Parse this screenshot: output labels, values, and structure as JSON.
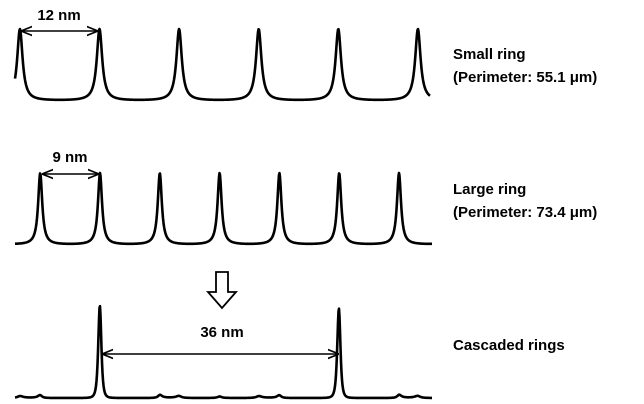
{
  "small_ring": {
    "spacing": "12 nm",
    "name": "Small ring",
    "perimeter": "(Perimeter: 55.1 μm)"
  },
  "large_ring": {
    "spacing": "9 nm",
    "name": "Large ring",
    "perimeter": "(Perimeter: 73.4 μm)"
  },
  "cascaded": {
    "spacing": "36 nm",
    "name": "Cascaded rings"
  }
}
